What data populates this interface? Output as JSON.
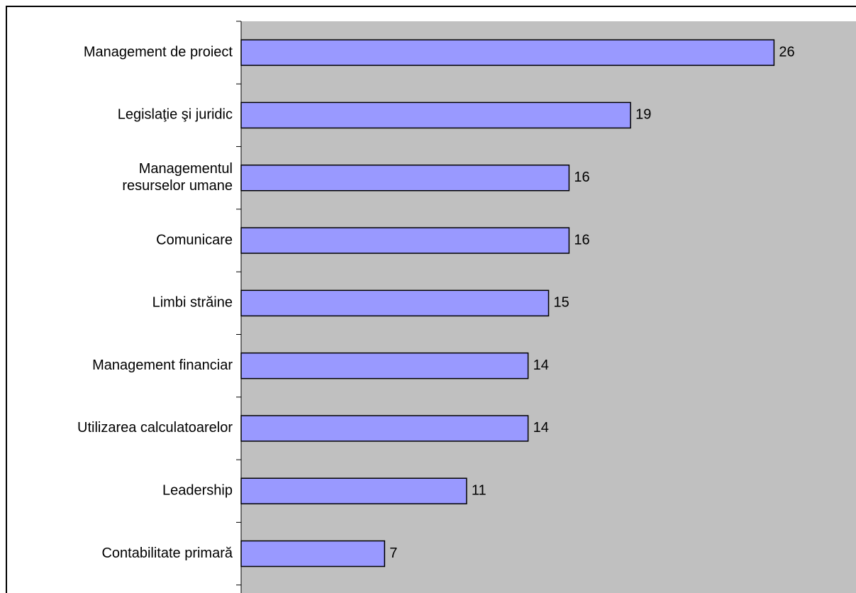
{
  "chart_data": {
    "type": "barh",
    "categories": [
      "Management de proiect",
      "Legislaţie şi juridic",
      "Managementul\nresurselor umane",
      "Comunicare",
      "Limbi străine",
      "Management financiar",
      "Utilizarea calculatoarelor",
      "Leadership",
      "Contabilitate primară"
    ],
    "values": [
      26,
      19,
      16,
      16,
      15,
      14,
      14,
      11,
      7
    ],
    "color": "#9999ff",
    "xlim": [
      0,
      30
    ]
  }
}
